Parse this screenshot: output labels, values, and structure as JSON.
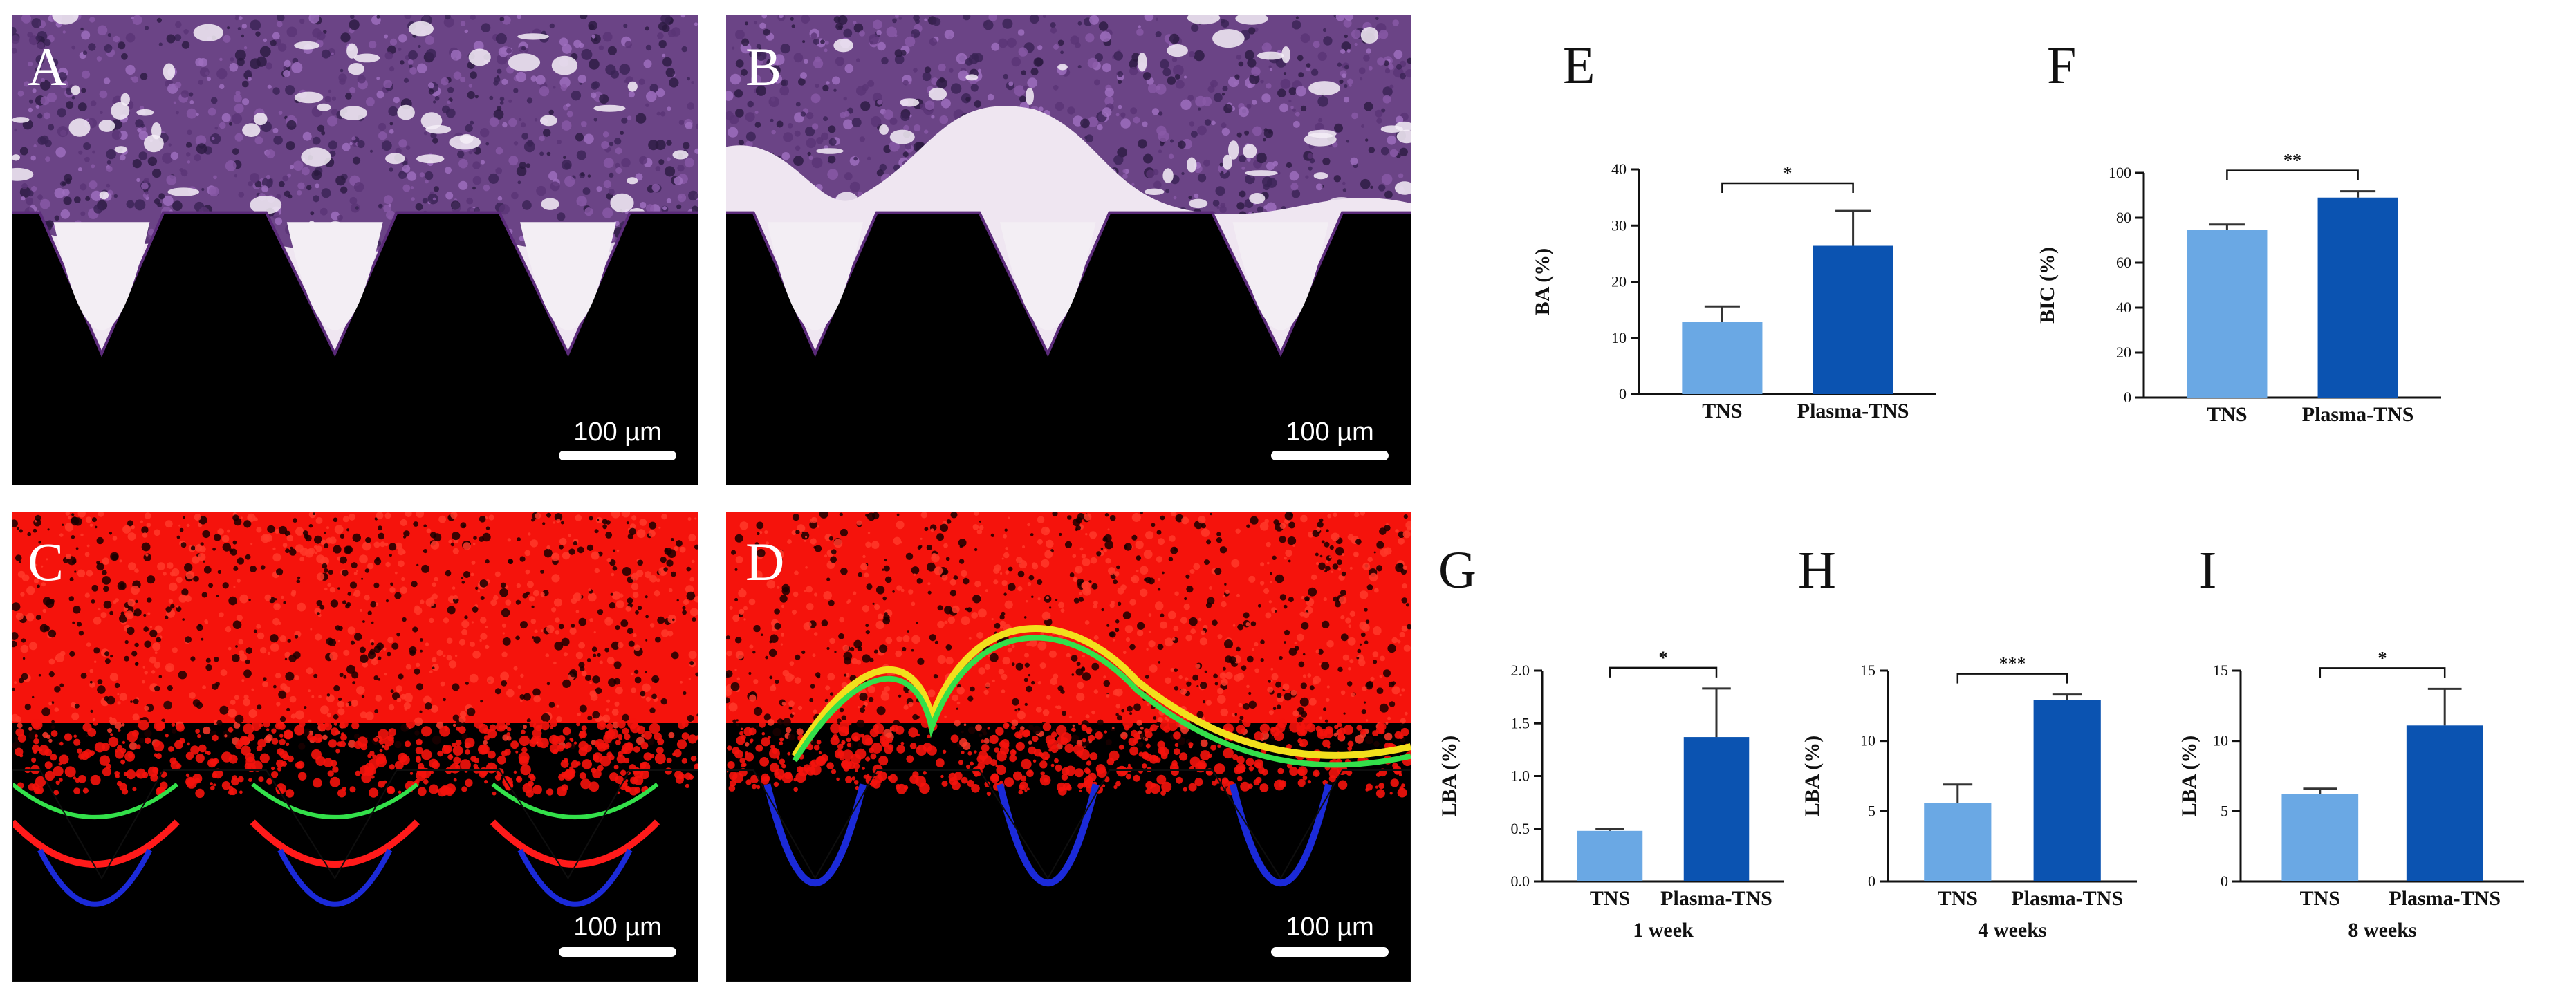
{
  "micrographs": [
    {
      "id": "A",
      "letter": "A",
      "stain": "histology",
      "scale_label": "100 µm"
    },
    {
      "id": "B",
      "letter": "B",
      "stain": "histology",
      "scale_label": "100 µm"
    },
    {
      "id": "C",
      "letter": "C",
      "stain": "fluorescence",
      "scale_label": "100 µm"
    },
    {
      "id": "D",
      "letter": "D",
      "stain": "fluorescence",
      "scale_label": "100 µm"
    }
  ],
  "colors": {
    "tns": "#6aa8e4",
    "plasma_tns": "#0b53b1",
    "histo_bg": "#6b4486",
    "fluor_red": "#f5130c"
  },
  "chart_data": [
    {
      "id": "E",
      "letter": "E",
      "type": "bar",
      "categories": [
        "TNS",
        "Plasma-TNS"
      ],
      "values": [
        12.8,
        26.4
      ],
      "errors": [
        2.8,
        6.2
      ],
      "ylabel": "BA (%)",
      "xlabel": "",
      "ylim": [
        0,
        40
      ],
      "yticks": [
        "0",
        "10",
        "20",
        "30",
        "40"
      ],
      "significance": "*"
    },
    {
      "id": "F",
      "letter": "F",
      "type": "bar",
      "categories": [
        "TNS",
        "Plasma-TNS"
      ],
      "values": [
        74.5,
        89.0
      ],
      "errors": [
        2.5,
        2.8
      ],
      "ylabel": "BIC (%)",
      "xlabel": "",
      "ylim": [
        0,
        100
      ],
      "yticks": [
        "0",
        "20",
        "40",
        "60",
        "80",
        "100"
      ],
      "significance": "**"
    },
    {
      "id": "G",
      "letter": "G",
      "type": "bar",
      "categories": [
        "TNS",
        "Plasma-TNS"
      ],
      "values": [
        0.48,
        1.37
      ],
      "errors": [
        0.02,
        0.46
      ],
      "ylabel": "LBA (%)",
      "xlabel": "1 week",
      "ylim": [
        0,
        2.0
      ],
      "yticks": [
        "0.0",
        "0.5",
        "1.0",
        "1.5",
        "2.0"
      ],
      "significance": "*"
    },
    {
      "id": "H",
      "letter": "H",
      "type": "bar",
      "categories": [
        "TNS",
        "Plasma-TNS"
      ],
      "values": [
        5.6,
        12.9
      ],
      "errors": [
        1.3,
        0.4
      ],
      "ylabel": "LBA (%)",
      "xlabel": "4 weeks",
      "ylim": [
        0,
        15
      ],
      "yticks": [
        "0",
        "5",
        "10",
        "15"
      ],
      "significance": "***"
    },
    {
      "id": "I",
      "letter": "I",
      "type": "bar",
      "categories": [
        "TNS",
        "Plasma-TNS"
      ],
      "values": [
        6.2,
        11.1
      ],
      "errors": [
        0.4,
        2.6
      ],
      "ylabel": "LBA (%)",
      "xlabel": "8 weeks",
      "ylim": [
        0,
        15
      ],
      "yticks": [
        "0",
        "5",
        "10",
        "15"
      ],
      "significance": "*"
    }
  ]
}
